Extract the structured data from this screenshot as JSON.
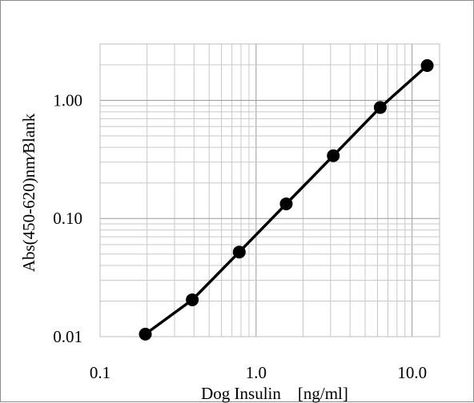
{
  "chart_data": {
    "type": "line",
    "title": "",
    "xlabel": "Dog Insulin　[ng/ml]",
    "ylabel": "Abs(450-620)nm∕Blank",
    "x_scale": "log",
    "y_scale": "log",
    "xlim": [
      0.1,
      15
    ],
    "ylim": [
      0.01,
      3
    ],
    "x_ticks": [
      {
        "value": 0.1,
        "label": "0.1"
      },
      {
        "value": 1.0,
        "label": "1.0"
      },
      {
        "value": 10.0,
        "label": "10.0"
      }
    ],
    "y_ticks": [
      {
        "value": 0.01,
        "label": "0.01"
      },
      {
        "value": 0.1,
        "label": "0.10"
      },
      {
        "value": 1.0,
        "label": "1.00"
      }
    ],
    "grid": true,
    "legend": "none",
    "series": [
      {
        "color": "#000000",
        "x": [
          0.195,
          0.39,
          0.78,
          1.56,
          3.125,
          6.25,
          12.5
        ],
        "y": [
          0.0105,
          0.0205,
          0.052,
          0.133,
          0.34,
          0.87,
          1.97
        ]
      }
    ]
  }
}
